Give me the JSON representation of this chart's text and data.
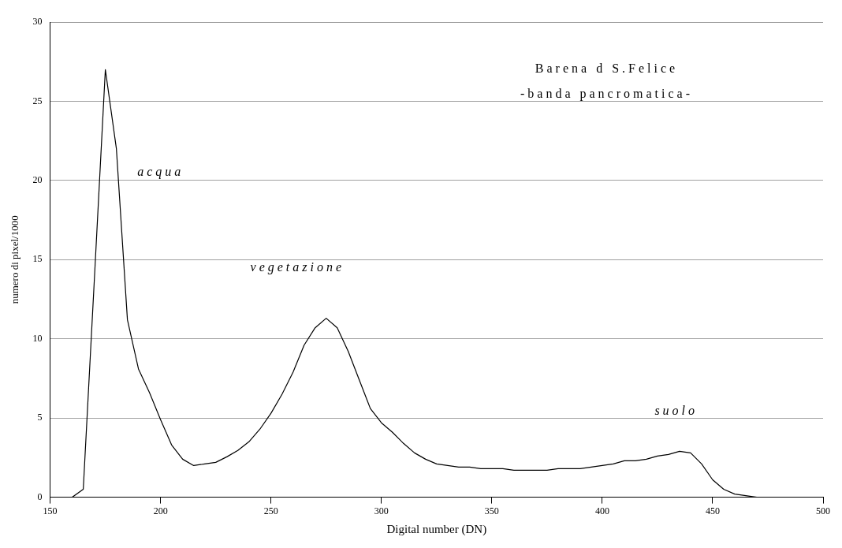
{
  "chart_data": {
    "type": "line",
    "title": "Barena d S.Felice",
    "subtitle": "-banda pancromatica-",
    "xlabel": "Digital number (DN)",
    "ylabel": "numero di pixel/1000",
    "x": [
      160,
      165,
      170,
      175,
      180,
      185,
      190,
      195,
      200,
      205,
      210,
      215,
      220,
      225,
      230,
      235,
      240,
      245,
      250,
      255,
      260,
      265,
      270,
      275,
      280,
      285,
      290,
      295,
      300,
      305,
      310,
      315,
      320,
      325,
      330,
      335,
      340,
      345,
      350,
      355,
      360,
      365,
      370,
      375,
      380,
      385,
      390,
      395,
      400,
      405,
      410,
      415,
      420,
      425,
      430,
      435,
      440,
      445,
      450,
      455,
      460,
      465,
      470,
      475,
      480,
      485,
      490,
      495,
      500
    ],
    "series": [
      {
        "color": "#000000",
        "values": [
          0,
          0.5,
          13.7,
          27,
          22,
          11.2,
          8.1,
          6.6,
          4.9,
          3.3,
          2.4,
          2.0,
          2.1,
          2.2,
          2.55,
          2.95,
          3.5,
          4.3,
          5.3,
          6.5,
          7.9,
          9.6,
          10.7,
          11.3,
          10.7,
          9.2,
          7.4,
          5.6,
          4.7,
          4.1,
          3.4,
          2.8,
          2.4,
          2.1,
          2.0,
          1.9,
          1.9,
          1.8,
          1.8,
          1.8,
          1.7,
          1.7,
          1.7,
          1.7,
          1.8,
          1.8,
          1.8,
          1.9,
          2.0,
          2.1,
          2.3,
          2.3,
          2.4,
          2.6,
          2.7,
          2.9,
          2.8,
          2.1,
          1.1,
          0.5,
          0.2,
          0.1,
          0,
          0,
          0,
          0,
          0,
          0,
          0
        ]
      }
    ],
    "annotations": [
      "acqua",
      "vegetazione",
      "suolo"
    ],
    "xlim": [
      150,
      500
    ],
    "xticks": [
      150,
      200,
      250,
      300,
      350,
      400,
      450,
      500
    ],
    "ylim": [
      0,
      30
    ],
    "yticks": [
      0,
      5,
      10,
      15,
      20,
      25,
      30
    ],
    "grid": "y",
    "legend": false,
    "marker": "none",
    "line_style": "solid"
  }
}
